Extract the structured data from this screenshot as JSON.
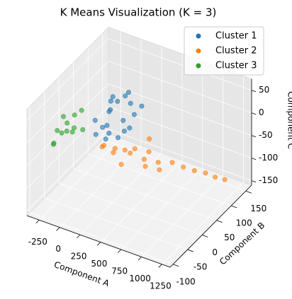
{
  "chart_data": {
    "type": "scatter3d",
    "title": "K Means Visualization (K = 3)",
    "xlabel": "Component A",
    "ylabel": "Component B",
    "zlabel": "Component C",
    "xlim": [
      -400,
      1350
    ],
    "ylim": [
      -110,
      170
    ],
    "zlim": [
      -160,
      75
    ],
    "xticks": [
      -250,
      0,
      250,
      500,
      750,
      1000,
      1250
    ],
    "yticks": [
      -100,
      -50,
      0,
      50,
      100,
      150
    ],
    "zticks": [
      -150,
      -100,
      -50,
      0,
      50
    ],
    "grid": true,
    "legend": "upper right",
    "series": [
      {
        "name": "Cluster 1",
        "color": "#1f77b4",
        "x": [
          -100,
          0,
          100,
          50,
          150,
          -50,
          200,
          80,
          120,
          -20,
          60,
          180,
          10,
          250,
          -80,
          90,
          140,
          30,
          220,
          -40
        ],
        "y": [
          40,
          60,
          80,
          50,
          70,
          80,
          90,
          30,
          100,
          20,
          110,
          40,
          70,
          60,
          60,
          90,
          20,
          40,
          110,
          100
        ],
        "z": [
          -27,
          -14,
          -40,
          0,
          -54,
          -7,
          -27,
          -20,
          -14,
          -40,
          0,
          -47,
          13,
          -34,
          -54,
          7,
          -27,
          -60,
          -20,
          -20
        ]
      },
      {
        "name": "Cluster 2",
        "color": "#ff7f0e",
        "x": [
          150,
          250,
          300,
          400,
          350,
          500,
          450,
          600,
          550,
          700,
          650,
          800,
          900,
          1000,
          1100,
          1200,
          200,
          300,
          420,
          380
        ],
        "y": [
          0,
          10,
          30,
          20,
          50,
          40,
          70,
          60,
          30,
          80,
          50,
          90,
          100,
          110,
          115,
          120,
          -20,
          -10,
          80,
          -5
        ],
        "z": [
          -40,
          -47,
          -60,
          -54,
          -67,
          -74,
          -80,
          -87,
          -80,
          -94,
          -94,
          -104,
          -112,
          -117,
          -123,
          -125,
          -27,
          -40,
          -60,
          -64
        ]
      },
      {
        "name": "Cluster 3",
        "color": "#2ca02c",
        "x": [
          -350,
          -300,
          -250,
          -320,
          -280,
          -200,
          -340,
          -260,
          -230,
          -310,
          -180,
          -290
        ],
        "y": [
          -20,
          0,
          10,
          -40,
          20,
          -10,
          10,
          -30,
          30,
          -10,
          20,
          -50
        ],
        "z": [
          -27,
          -20,
          -34,
          -40,
          -14,
          -27,
          -47,
          -20,
          -7,
          0,
          -40,
          -34
        ]
      }
    ]
  }
}
